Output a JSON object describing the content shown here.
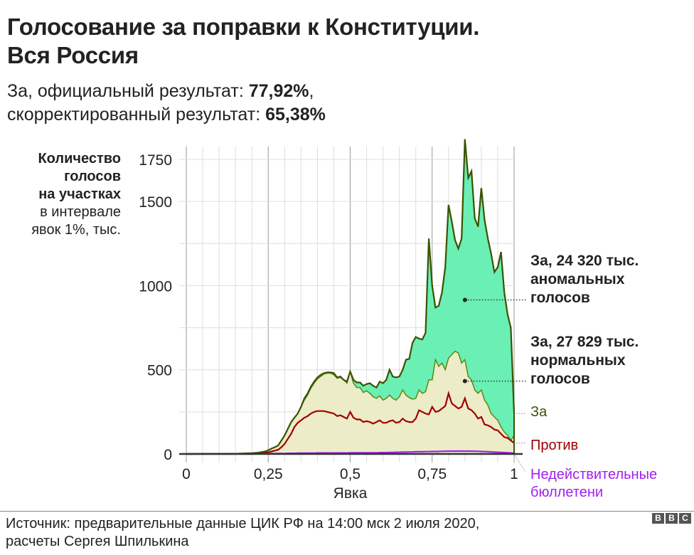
{
  "header": {
    "title_line1": "Голосование за поправки к Конституции.",
    "title_line2": "Вся Россия",
    "subtitle_line1_prefix": "За, официальный результат: ",
    "subtitle_line1_value": "77,92%",
    "subtitle_line1_suffix": ",",
    "subtitle_line2_prefix": "скорректированный результат: ",
    "subtitle_line2_value": "65,38%"
  },
  "y_axis_label": {
    "line1": "Количество",
    "line2": "голосов",
    "line3": "на участках",
    "line4": "в интервале",
    "line5": "явок 1%, тыс."
  },
  "annotations": {
    "anomalous_line1": "За, 24 320 тыс.",
    "anomalous_line2": "аномальных",
    "anomalous_line3": "голосов",
    "normal_line1": "За, 27 829 тыс.",
    "normal_line2": "нормальных",
    "normal_line3": "голосов"
  },
  "legend": {
    "za": "За",
    "protiv": "Против",
    "invalid_line1": "Недействительные",
    "invalid_line2": "бюллетени"
  },
  "footer": {
    "source_line1": "Источник: предварительные данные ЦИК РФ на 14:00 мск 2 июля 2020,",
    "source_line2": "расчеты Сергея Шпилькина",
    "logo_letters": [
      "B",
      "B",
      "C"
    ]
  },
  "colors": {
    "anomalous_fill": "#6aefb4",
    "normal_fill": "#edecc8",
    "za_line": "#3a5200",
    "normal_line": "#5a8a10",
    "protiv_line": "#a00000",
    "invalid_line": "#a020f0",
    "grid": "#dddddd",
    "major_grid": "#999999",
    "text": "#222222"
  },
  "chart_data": {
    "type": "area",
    "title": "Голосование за поправки к Конституции. Вся Россия",
    "xlabel": "Явка",
    "ylabel": "Количество голосов на участках в интервале явок 1%, тыс.",
    "xlim": [
      0,
      1
    ],
    "ylim": [
      0,
      1800
    ],
    "x_ticks": [
      "0",
      "0,25",
      "0,5",
      "0,75",
      "1"
    ],
    "y_ticks": [
      "0",
      "500",
      "1000",
      "1500",
      "1750"
    ],
    "x_tick_values": [
      0,
      0.25,
      0.5,
      0.75,
      1
    ],
    "y_tick_values": [
      0,
      500,
      1000,
      1500,
      1750
    ],
    "grid": true,
    "x": [
      0.0,
      0.16,
      0.2,
      0.22,
      0.24,
      0.25,
      0.26,
      0.27,
      0.28,
      0.29,
      0.3,
      0.31,
      0.32,
      0.33,
      0.34,
      0.35,
      0.36,
      0.37,
      0.38,
      0.39,
      0.4,
      0.41,
      0.42,
      0.43,
      0.44,
      0.45,
      0.46,
      0.47,
      0.48,
      0.49,
      0.5,
      0.51,
      0.52,
      0.53,
      0.54,
      0.55,
      0.56,
      0.57,
      0.58,
      0.59,
      0.6,
      0.61,
      0.62,
      0.63,
      0.64,
      0.65,
      0.66,
      0.67,
      0.68,
      0.69,
      0.7,
      0.71,
      0.72,
      0.73,
      0.74,
      0.75,
      0.76,
      0.77,
      0.78,
      0.79,
      0.8,
      0.81,
      0.82,
      0.83,
      0.84,
      0.85,
      0.86,
      0.87,
      0.88,
      0.89,
      0.9,
      0.91,
      0.92,
      0.93,
      0.94,
      0.95,
      0.96,
      0.97,
      0.98,
      0.99,
      1.0
    ],
    "series": [
      {
        "name": "За (всего)",
        "values": [
          0,
          2,
          5,
          8,
          15,
          22,
          32,
          40,
          50,
          80,
          110,
          150,
          190,
          215,
          240,
          280,
          330,
          360,
          400,
          430,
          455,
          470,
          480,
          485,
          485,
          480,
          455,
          460,
          440,
          430,
          490,
          440,
          425,
          425,
          405,
          415,
          420,
          405,
          395,
          430,
          420,
          440,
          500,
          460,
          455,
          460,
          500,
          560,
          565,
          660,
          695,
          685,
          680,
          720,
          1280,
          1000,
          870,
          880,
          960,
          1110,
          1480,
          1380,
          1270,
          1220,
          1280,
          1870,
          1640,
          1680,
          1400,
          1350,
          1580,
          1390,
          1280,
          1190,
          1080,
          1110,
          1200,
          960,
          830,
          750,
          240
        ],
        "note": "верхняя граница (тёмно-зелёная линия)"
      },
      {
        "name": "За, нормальные голоса",
        "values": [
          0,
          2,
          5,
          8,
          15,
          22,
          32,
          40,
          50,
          80,
          110,
          150,
          190,
          215,
          240,
          280,
          320,
          350,
          390,
          420,
          445,
          460,
          475,
          480,
          480,
          470,
          450,
          455,
          440,
          420,
          490,
          420,
          395,
          395,
          365,
          375,
          360,
          340,
          330,
          345,
          320,
          330,
          350,
          330,
          320,
          340,
          380,
          350,
          335,
          325,
          330,
          380,
          360,
          370,
          440,
          440,
          560,
          520,
          540,
          500,
          570,
          590,
          610,
          600,
          540,
          560,
          460,
          440,
          380,
          360,
          380,
          320,
          290,
          240,
          220,
          200,
          160,
          130,
          110,
          80,
          110
        ],
        "note": "граница нормальных голосов (светло-зелёная линия)"
      },
      {
        "name": "Против",
        "values": [
          0,
          1,
          3,
          5,
          8,
          10,
          15,
          20,
          25,
          40,
          60,
          90,
          120,
          160,
          185,
          200,
          215,
          225,
          240,
          250,
          255,
          255,
          255,
          250,
          245,
          240,
          225,
          230,
          220,
          210,
          250,
          215,
          205,
          205,
          190,
          195,
          190,
          180,
          190,
          200,
          185,
          185,
          195,
          200,
          185,
          190,
          210,
          195,
          190,
          190,
          210,
          260,
          250,
          240,
          235,
          280,
          250,
          255,
          270,
          285,
          360,
          300,
          285,
          270,
          280,
          330,
          270,
          260,
          240,
          210,
          220,
          175,
          170,
          160,
          145,
          140,
          120,
          100,
          95,
          80,
          65
        ]
      },
      {
        "name": "Недействительные бюллетени",
        "values": [
          0,
          0,
          0,
          1,
          1,
          2,
          2,
          2,
          3,
          3,
          3,
          4,
          4,
          4,
          5,
          5,
          5,
          5,
          5,
          5,
          6,
          6,
          6,
          6,
          6,
          6,
          6,
          6,
          6,
          6,
          7,
          7,
          7,
          7,
          7,
          7,
          7,
          7,
          7,
          8,
          8,
          8,
          9,
          9,
          10,
          10,
          11,
          11,
          12,
          12,
          13,
          13,
          13,
          14,
          14,
          15,
          15,
          15,
          16,
          16,
          17,
          17,
          17,
          17,
          17,
          17,
          17,
          17,
          16,
          16,
          15,
          14,
          13,
          12,
          11,
          10,
          9,
          8,
          7,
          6,
          5
        ]
      }
    ],
    "annotations": [
      {
        "text": "За, 24 320 тыс. аномальных голосов",
        "x": 0.85,
        "y": 915
      },
      {
        "text": "За, 27 829 тыс. нормальных голосов",
        "x": 0.85,
        "y": 433
      }
    ],
    "legend": [
      "За",
      "Против",
      "Недействительные бюллетени"
    ],
    "legend_position": "right"
  }
}
